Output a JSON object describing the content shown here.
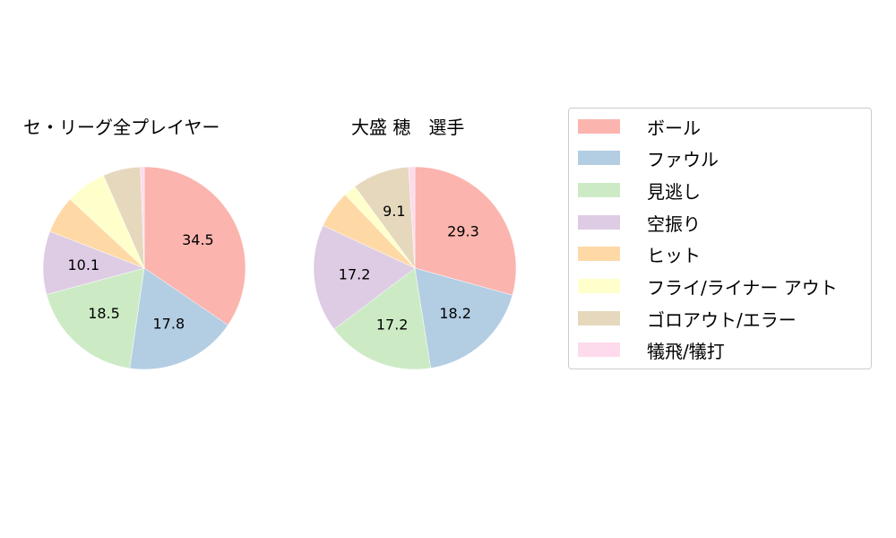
{
  "chart_data": [
    {
      "type": "pie",
      "title": "セ・リーグ全プレイヤー",
      "categories": [
        "ボール",
        "ファウル",
        "見逃し",
        "空振り",
        "ヒット",
        "フライ/ライナー アウト",
        "ゴロアウト/エラー",
        "犠飛/犠打"
      ],
      "values": [
        34.5,
        17.8,
        18.5,
        10.1,
        6.0,
        6.5,
        6.0,
        0.6
      ],
      "labels_shown": [
        "34.5",
        "17.8",
        "18.5",
        "10.1",
        "",
        "",
        "",
        ""
      ],
      "start_angle": 90,
      "direction": "clockwise"
    },
    {
      "type": "pie",
      "title": "大盛 穂　選手",
      "categories": [
        "ボール",
        "ファウル",
        "見逃し",
        "空振り",
        "ヒット",
        "フライ/ライナー アウト",
        "ゴロアウト/エラー",
        "犠飛/犠打"
      ],
      "values": [
        29.3,
        18.2,
        17.2,
        17.2,
        6.0,
        2.0,
        9.1,
        1.0
      ],
      "labels_shown": [
        "29.3",
        "18.2",
        "17.2",
        "17.2",
        "",
        "",
        "9.1",
        ""
      ],
      "start_angle": 90,
      "direction": "clockwise"
    }
  ],
  "pies": [
    {
      "title": "セ・リーグ全プレイヤー"
    },
    {
      "title": "大盛 穂　選手"
    }
  ],
  "legend": {
    "items": [
      {
        "label": "ボール",
        "color": "#fbb4ae"
      },
      {
        "label": "ファウル",
        "color": "#b3cde3"
      },
      {
        "label": "見逃し",
        "color": "#ccebc5"
      },
      {
        "label": "空振り",
        "color": "#decbe4"
      },
      {
        "label": "ヒット",
        "color": "#fed9a6"
      },
      {
        "label": "フライ/ライナー アウト",
        "color": "#ffffcc"
      },
      {
        "label": "ゴロアウト/エラー",
        "color": "#e5d8bd"
      },
      {
        "label": "犠飛/犠打",
        "color": "#fddaec"
      }
    ]
  }
}
